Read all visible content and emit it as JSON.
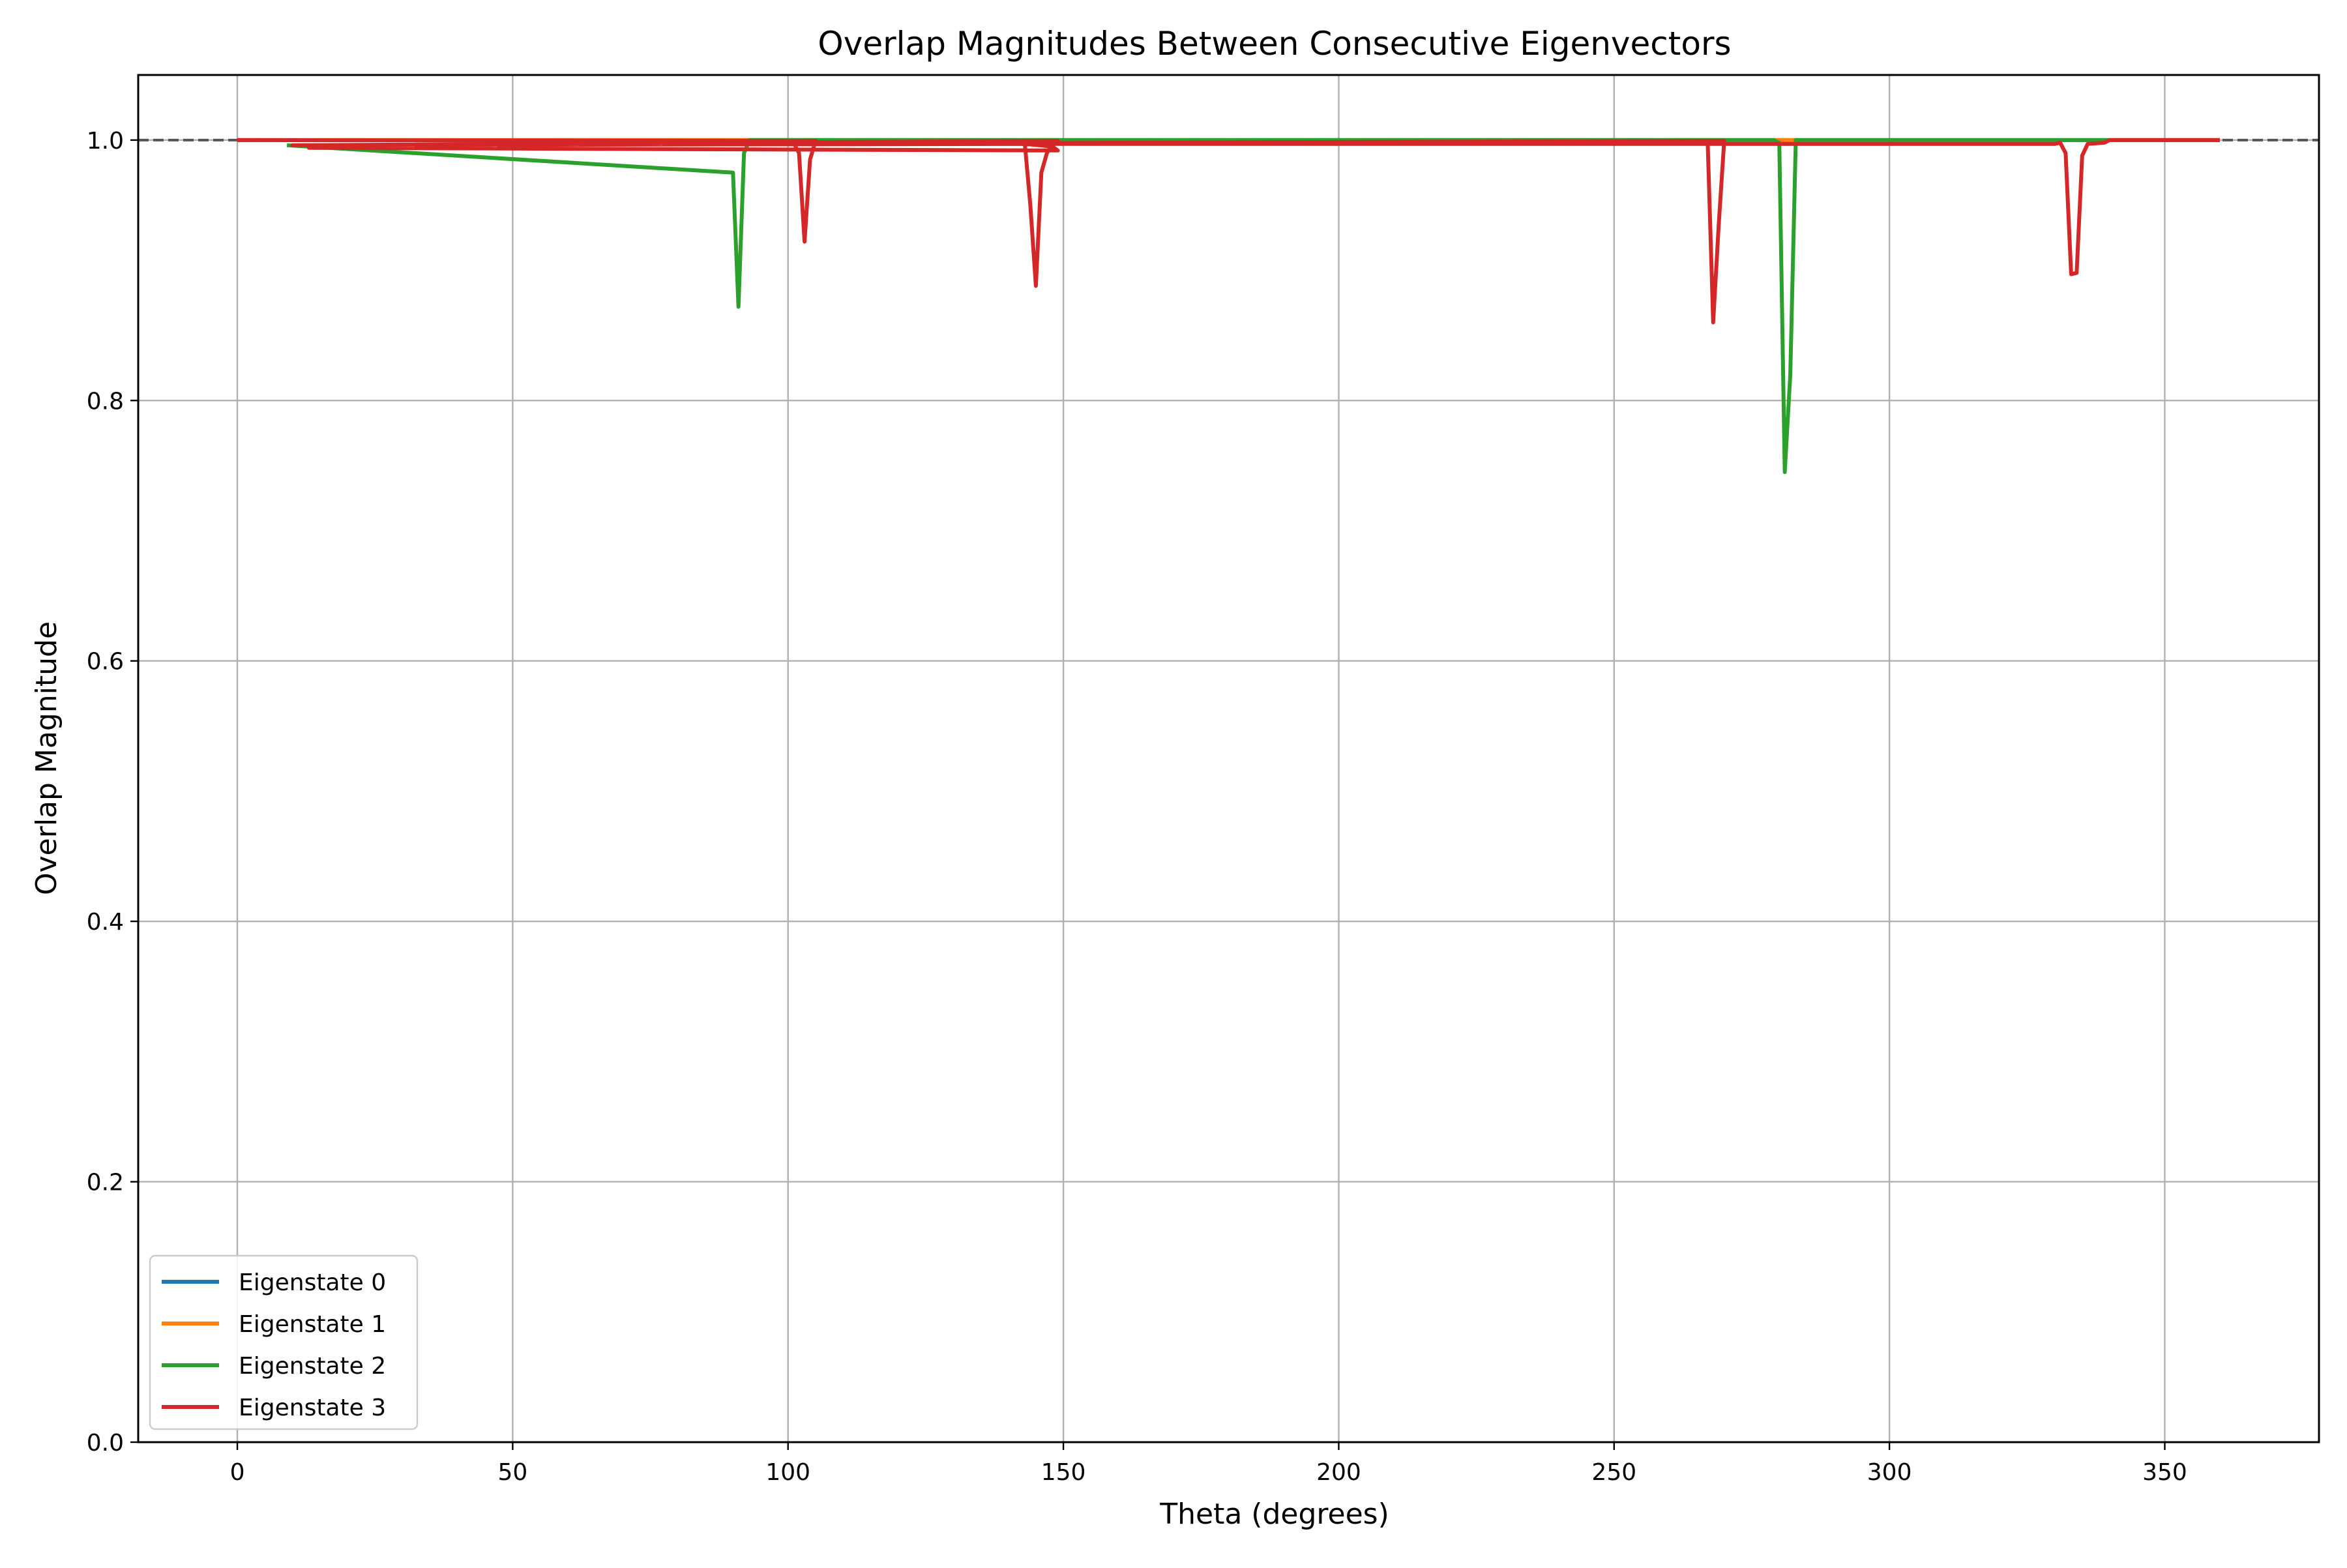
{
  "chart_data": {
    "type": "line",
    "title": "Overlap Magnitudes Between Consecutive Eigenvectors",
    "xlabel": "Theta (degrees)",
    "ylabel": "Overlap Magnitude",
    "xlim": [
      -18,
      378
    ],
    "ylim": [
      0,
      1.05
    ],
    "xticks": [
      0,
      50,
      100,
      150,
      200,
      250,
      300,
      350
    ],
    "yticks": [
      0.0,
      0.2,
      0.4,
      0.6,
      0.8,
      1.0
    ],
    "xtick_labels": [
      "0",
      "50",
      "100",
      "150",
      "200",
      "250",
      "300",
      "350"
    ],
    "ytick_labels": [
      "0.0",
      "0.2",
      "0.4",
      "0.6",
      "0.8",
      "1.0"
    ],
    "grid": true,
    "legend": "lower-left",
    "reference_line": {
      "y": 1.0,
      "style": "dashed",
      "color": "#555555"
    },
    "series": [
      {
        "name": "Eigenstate 0",
        "color": "#1f77b4",
        "x": [
          0,
          360
        ],
        "y": [
          1.0,
          1.0
        ]
      },
      {
        "name": "Eigenstate 1",
        "color": "#ff7f0e",
        "x": [
          0,
          360
        ],
        "y": [
          1.0,
          1.0
        ]
      },
      {
        "name": "Eigenstate 2",
        "color": "#2ca02c",
        "x": [
          9,
          90,
          91,
          92,
          93,
          279,
          280,
          281,
          282,
          283,
          360
        ],
        "y": [
          0.996,
          0.975,
          0.872,
          0.99,
          1.0,
          1.0,
          0.998,
          0.745,
          0.82,
          1.0,
          1.0
        ]
      },
      {
        "name": "Eigenstate 3",
        "color": "#d62728",
        "x": [
          0,
          100,
          101,
          102,
          103,
          104,
          105,
          13,
          149,
          148,
          143,
          144,
          145,
          146,
          147,
          148,
          149,
          10,
          267,
          268,
          269,
          270,
          100,
          330,
          331,
          332,
          333,
          334,
          335,
          336,
          339,
          340,
          360
        ],
        "y": [
          1.0,
          0.9995,
          0.998,
          0.99,
          0.922,
          0.985,
          0.9995,
          0.994,
          0.992,
          0.995,
          0.997,
          0.95,
          0.888,
          0.975,
          0.99,
          0.997,
          0.9995,
          0.996,
          0.998,
          0.86,
          0.935,
          0.9995,
          0.997,
          0.997,
          0.998,
          0.99,
          0.897,
          0.898,
          0.988,
          0.997,
          0.998,
          1.0,
          1.0
        ]
      }
    ]
  }
}
